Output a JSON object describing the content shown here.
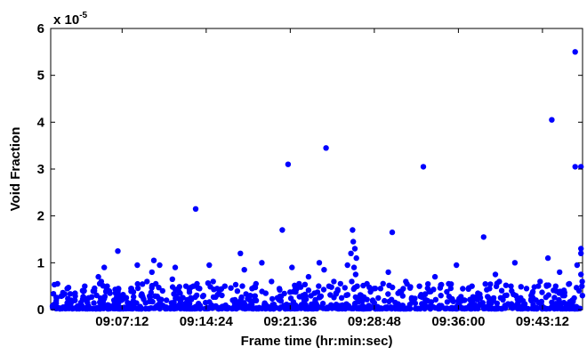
{
  "chart_data": {
    "type": "scatter",
    "xlabel": "Frame time (hr:min:sec)",
    "ylabel": "Void Fraction",
    "y_multiplier": {
      "base": "x 10",
      "exponent": "-5"
    },
    "ylim": [
      0,
      6
    ],
    "y_ticks": [
      0,
      1,
      2,
      3,
      4,
      5,
      6
    ],
    "xlim": [
      "09:01:05",
      "09:46:38"
    ],
    "x_ticks": [
      "09:07:12",
      "09:14:24",
      "09:21:36",
      "09:28:48",
      "09:36:00",
      "09:43:12"
    ],
    "grid": false,
    "marker_color": "#0000ff",
    "series": [
      {
        "points": [
          [
            "09:01:20",
            0.1
          ],
          [
            "09:01:40",
            0.55
          ],
          [
            "09:02:05",
            0.3
          ],
          [
            "09:02:30",
            0.45
          ],
          [
            "09:02:50",
            0.2
          ],
          [
            "09:03:10",
            0.35
          ],
          [
            "09:03:40",
            0.15
          ],
          [
            "09:04:00",
            0.5
          ],
          [
            "09:04:20",
            0.25
          ],
          [
            "09:04:50",
            0.4
          ],
          [
            "09:05:10",
            0.7
          ],
          [
            "09:05:25",
            0.6
          ],
          [
            "09:05:40",
            0.9
          ],
          [
            "09:05:55",
            0.5
          ],
          [
            "09:06:10",
            0.35
          ],
          [
            "09:06:30",
            0.2
          ],
          [
            "09:06:50",
            1.25
          ],
          [
            "09:07:10",
            0.3
          ],
          [
            "09:07:40",
            0.15
          ],
          [
            "09:08:00",
            0.45
          ],
          [
            "09:08:30",
            0.95
          ],
          [
            "09:08:50",
            0.3
          ],
          [
            "09:09:20",
            0.6
          ],
          [
            "09:09:45",
            0.8
          ],
          [
            "09:09:55",
            1.05
          ],
          [
            "09:10:05",
            0.55
          ],
          [
            "09:10:25",
            0.95
          ],
          [
            "09:10:40",
            0.4
          ],
          [
            "09:11:00",
            0.2
          ],
          [
            "09:11:30",
            0.65
          ],
          [
            "09:11:45",
            0.9
          ],
          [
            "09:12:10",
            0.35
          ],
          [
            "09:12:40",
            0.5
          ],
          [
            "09:13:05",
            0.25
          ],
          [
            "09:13:30",
            2.15
          ],
          [
            "09:13:50",
            0.45
          ],
          [
            "09:14:10",
            0.3
          ],
          [
            "09:14:40",
            0.95
          ],
          [
            "09:15:00",
            0.6
          ],
          [
            "09:15:30",
            0.35
          ],
          [
            "09:16:00",
            0.5
          ],
          [
            "09:16:40",
            0.2
          ],
          [
            "09:17:20",
            1.2
          ],
          [
            "09:17:40",
            0.85
          ],
          [
            "09:18:10",
            0.3
          ],
          [
            "09:18:40",
            0.55
          ],
          [
            "09:19:10",
            1.0
          ],
          [
            "09:19:30",
            0.35
          ],
          [
            "09:20:00",
            0.6
          ],
          [
            "09:20:30",
            0.25
          ],
          [
            "09:20:55",
            1.7
          ],
          [
            "09:21:25",
            3.1
          ],
          [
            "09:21:45",
            0.9
          ],
          [
            "09:22:10",
            0.45
          ],
          [
            "09:22:40",
            0.3
          ],
          [
            "09:23:10",
            0.7
          ],
          [
            "09:23:40",
            0.35
          ],
          [
            "09:24:05",
            1.0
          ],
          [
            "09:24:30",
            0.85
          ],
          [
            "09:24:40",
            3.45
          ],
          [
            "09:24:55",
            0.5
          ],
          [
            "09:25:20",
            0.6
          ],
          [
            "09:25:40",
            0.4
          ],
          [
            "09:26:00",
            0.25
          ],
          [
            "09:26:30",
            0.95
          ],
          [
            "09:26:48",
            1.2
          ],
          [
            "09:26:52",
            0.6
          ],
          [
            "09:26:56",
            1.7
          ],
          [
            "09:27:00",
            1.45
          ],
          [
            "09:27:04",
            0.9
          ],
          [
            "09:27:08",
            1.3
          ],
          [
            "09:27:12",
            0.75
          ],
          [
            "09:27:16",
            1.1
          ],
          [
            "09:27:20",
            0.5
          ],
          [
            "09:27:40",
            0.3
          ],
          [
            "09:28:10",
            0.55
          ],
          [
            "09:28:40",
            0.2
          ],
          [
            "09:29:20",
            0.45
          ],
          [
            "09:30:00",
            0.8
          ],
          [
            "09:30:20",
            1.65
          ],
          [
            "09:30:50",
            0.35
          ],
          [
            "09:31:30",
            0.6
          ],
          [
            "09:32:00",
            0.25
          ],
          [
            "09:32:40",
            0.5
          ],
          [
            "09:33:00",
            3.05
          ],
          [
            "09:33:30",
            0.4
          ],
          [
            "09:34:00",
            0.7
          ],
          [
            "09:34:30",
            0.3
          ],
          [
            "09:35:10",
            0.55
          ],
          [
            "09:35:50",
            0.95
          ],
          [
            "09:36:30",
            0.2
          ],
          [
            "09:37:10",
            0.5
          ],
          [
            "09:37:40",
            0.35
          ],
          [
            "09:38:10",
            1.55
          ],
          [
            "09:38:40",
            0.45
          ],
          [
            "09:39:10",
            0.75
          ],
          [
            "09:39:30",
            0.6
          ],
          [
            "09:40:00",
            0.3
          ],
          [
            "09:40:30",
            0.5
          ],
          [
            "09:40:50",
            1.0
          ],
          [
            "09:41:20",
            0.25
          ],
          [
            "09:41:50",
            0.45
          ],
          [
            "09:42:20",
            0.35
          ],
          [
            "09:43:00",
            0.6
          ],
          [
            "09:43:40",
            1.1
          ],
          [
            "09:44:00",
            4.05
          ],
          [
            "09:44:20",
            0.5
          ],
          [
            "09:44:40",
            0.8
          ],
          [
            "09:45:05",
            0.3
          ],
          [
            "09:45:30",
            0.55
          ],
          [
            "09:45:45",
            0.2
          ],
          [
            "09:46:00",
            5.5
          ],
          [
            "09:46:00",
            3.05
          ],
          [
            "09:46:10",
            0.95
          ],
          [
            "09:46:20",
            0.4
          ],
          [
            "09:46:30",
            3.05
          ],
          [
            "09:46:30",
            1.3
          ],
          [
            "09:46:30",
            1.2
          ],
          [
            "09:46:30",
            0.75
          ],
          [
            "09:46:35",
            0.5
          ],
          [
            "09:46:36",
            0.6
          ],
          [
            "09:46:37",
            0.3
          ]
        ]
      }
    ]
  }
}
